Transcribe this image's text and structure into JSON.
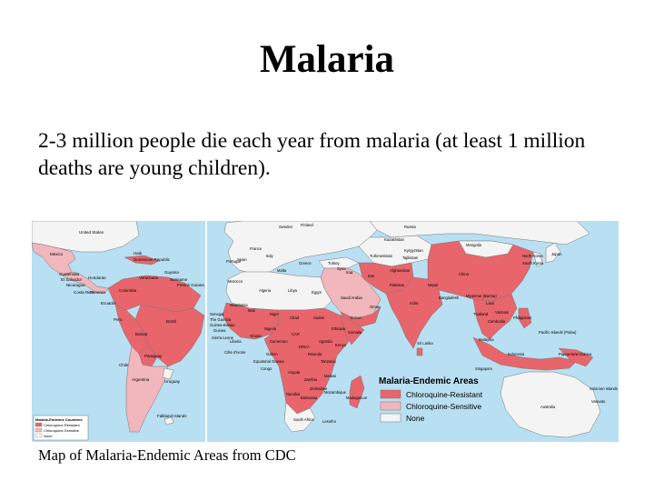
{
  "slide": {
    "title": "Malaria",
    "body": "2-3 million people die each year from malaria (at least 1 million deaths are young children).",
    "caption": "Map of Malaria-Endemic Areas from CDC"
  },
  "map": {
    "legend_title": "Malaria-Endemic Areas",
    "legend_items": [
      {
        "label": "Chloroquine-Resistant",
        "color": "#e8656b"
      },
      {
        "label": "Chloroquine-Sensitive",
        "color": "#f2b6bd"
      },
      {
        "label": "None",
        "color": "#f4f4f4"
      }
    ],
    "inset_legend_title": "Malaria-Endemic Countries",
    "inset_legend_items": [
      {
        "label": "Chloroquine-Resistant",
        "color": "#e8656b"
      },
      {
        "label": "Chloroquine-Sensitive",
        "color": "#f2b6bd"
      },
      {
        "label": "None",
        "color": "#f4f4f4"
      }
    ],
    "colors": {
      "ocean": "#b9dff2",
      "border": "#777777"
    },
    "labels": {
      "united_states": "United States",
      "mexico": "Mexico",
      "guatemala": "Guatemala",
      "el_salvador": "El Salvador",
      "nicaragua": "Nicaragua",
      "honduras": "Honduras",
      "costa_rica": "Costa Rica",
      "panama": "Panama",
      "haiti": "Haiti",
      "dominican_republic": "Dominican Republic",
      "venezuela": "Venezuela",
      "guyana": "Guyana",
      "french_guiana": "French Guiana",
      "suriname": "Suriname",
      "colombia": "Colombia",
      "ecuador": "Ecuador",
      "peru": "Peru",
      "brazil": "Brazil",
      "bolivia": "Bolivia",
      "paraguay": "Paraguay",
      "chile": "Chile",
      "argentina": "Argentina",
      "uruguay": "Uruguay",
      "falkland": "Falkland Islands",
      "sweden": "Sweden",
      "finland": "Finland",
      "russia": "Russia",
      "kazakhstan": "Kazakhstan",
      "mongolia": "Mongolia",
      "north_korea": "North Korea",
      "south_korea": "South Korea",
      "japan": "Japan",
      "china": "China",
      "kyrgyzstan": "Kyrgyzstan",
      "tajikistan": "Tajikistan",
      "turkmenistan": "Turkmenistan",
      "turkey": "Turkey",
      "iran": "Iran",
      "afghanistan": "Afghanistan",
      "pakistan": "Pakistan",
      "india": "India",
      "nepal": "Nepal",
      "bangladesh": "Bangladesh",
      "myanmar": "Myanmar (Burma)",
      "laos": "Laos",
      "thailand": "Thailand",
      "vietnam": "Vietnam",
      "cambodia": "Cambodia",
      "philippines": "Philippines",
      "sri_lanka": "Sri Lanka",
      "malaysia": "Malaysia",
      "singapore": "Singapore",
      "indonesia": "Indonesia",
      "papua_new_guinea": "Papua New Guinea",
      "solomon_islands": "Solomon Islands",
      "vanuatu": "Vanuatu",
      "pacific_islands": "Pacific Islands (Palau)",
      "portugal": "Portugal",
      "spain": "Spain",
      "france": "France",
      "italy": "Italy",
      "greece": "Greece",
      "malta": "Malta",
      "morocco": "Morocco",
      "algeria": "Algeria",
      "libya": "Libya",
      "egypt": "Egypt",
      "saudi_arabia": "Saudi Arabia",
      "oman": "Oman",
      "yemen": "Yemen",
      "iraq": "Iraq",
      "syria": "Syria",
      "senegal": "Senegal",
      "gambia": "The Gambia",
      "guinea_bissau": "Guinea-Bissau",
      "guinea": "Guinea",
      "sierra_leone": "Sierra Leone",
      "liberia": "Liberia",
      "cote_divoire": "Côte d'Ivoire",
      "ghana": "Ghana",
      "mali": "Mali",
      "mauritania": "Mauritania",
      "niger": "Niger",
      "chad": "Chad",
      "sudan": "Sudan",
      "ethiopia": "Ethiopia",
      "nigeria": "Nigeria",
      "car": "CAR",
      "drc": "DRCA",
      "congo": "Congo",
      "gabon": "Gabon",
      "equatorial_guinea": "Equatorial Guinea",
      "cameroon": "Cameroon",
      "uganda": "Uganda",
      "kenya": "Kenya",
      "rwanda": "Rwanda",
      "tanzania": "Tanzania",
      "angola": "Angola",
      "zambia": "Zambia",
      "malawi": "Malawi",
      "mozambique": "Mozambique",
      "namibia": "Namibia",
      "botswana": "Botswana",
      "zimbabwe": "Zimbabwe",
      "madagascar": "Madagascar",
      "south_africa": "South Africa",
      "lesotho": "Lesotho",
      "somalia": "Somalia",
      "australia": "Australia"
    }
  }
}
